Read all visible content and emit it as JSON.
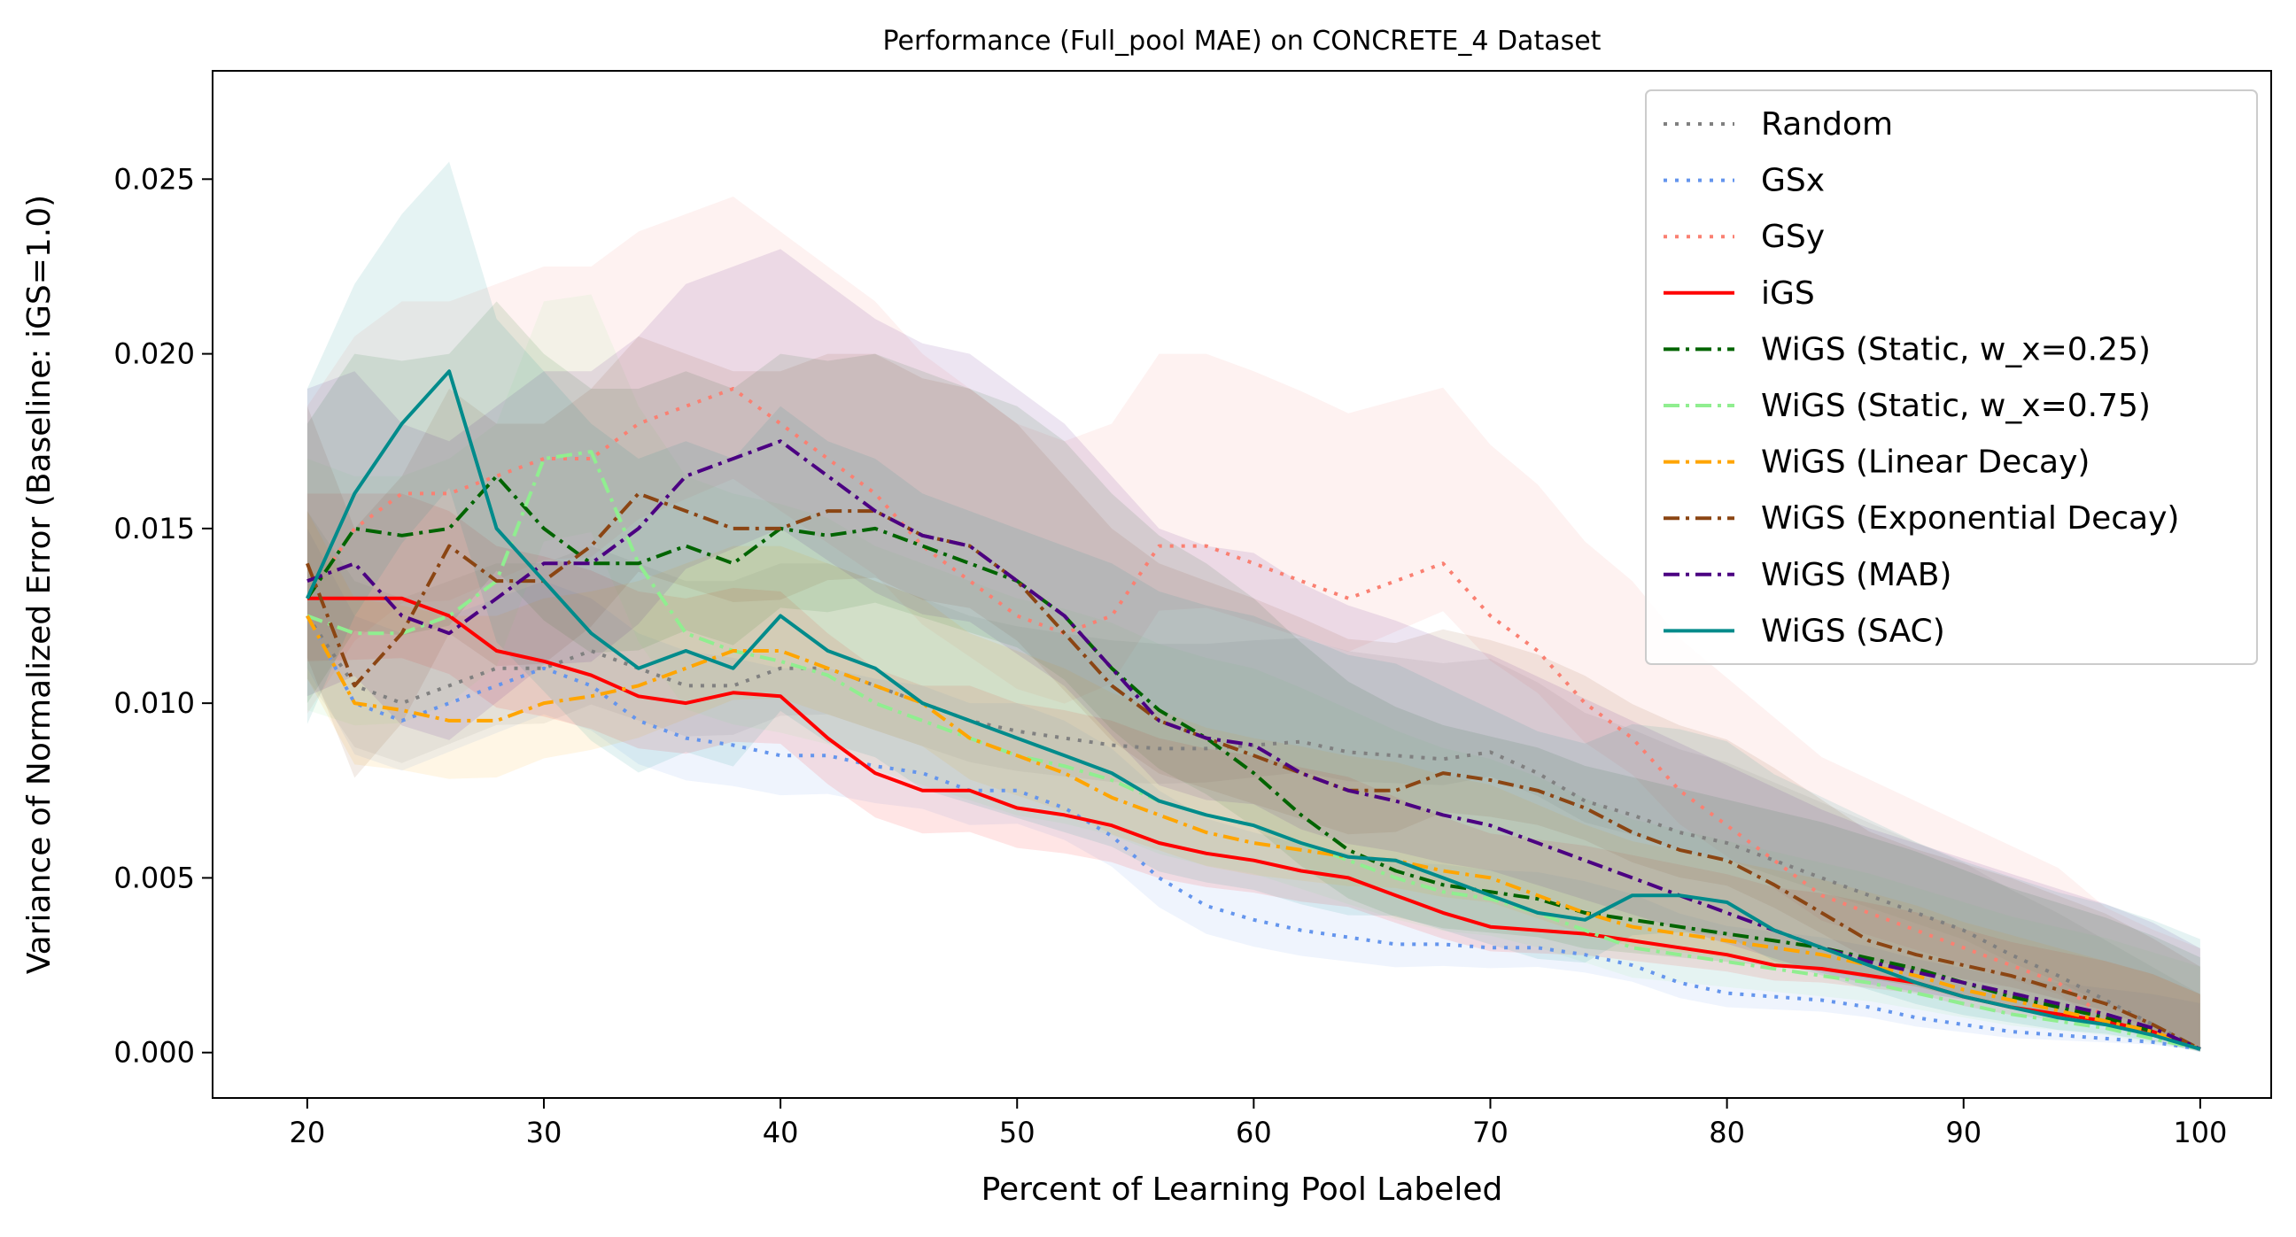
{
  "chart_data": {
    "type": "line",
    "title": "Performance (Full_pool MAE) on CONCRETE_4 Dataset",
    "xlabel": "Percent of Learning Pool Labeled",
    "ylabel": "Variance of Normalized Error (Baseline: iGS=1.0)",
    "xlim": [
      16,
      103
    ],
    "ylim": [
      -0.0013,
      0.0281
    ],
    "xticks": [
      20,
      30,
      40,
      50,
      60,
      70,
      80,
      90,
      100
    ],
    "yticks": [
      0.0,
      0.005,
      0.01,
      0.015,
      0.02,
      0.025
    ],
    "ytick_labels": [
      "0.000",
      "0.005",
      "0.010",
      "0.015",
      "0.020",
      "0.025"
    ],
    "grid": false,
    "legend_position": "top-right",
    "x": [
      20,
      22,
      24,
      26,
      28,
      30,
      32,
      34,
      36,
      38,
      40,
      42,
      44,
      46,
      48,
      50,
      52,
      54,
      56,
      58,
      60,
      62,
      64,
      66,
      68,
      70,
      72,
      74,
      76,
      78,
      80,
      82,
      84,
      86,
      88,
      90,
      92,
      94,
      96,
      98,
      100
    ],
    "series": [
      {
        "name": "Random",
        "color": "#808080",
        "dash": "dot",
        "band": 0.003,
        "values": [
          0.0125,
          0.0105,
          0.01,
          0.0105,
          0.011,
          0.011,
          0.0115,
          0.011,
          0.0105,
          0.0105,
          0.011,
          0.011,
          0.0105,
          0.01,
          0.0095,
          0.0092,
          0.009,
          0.0088,
          0.0087,
          0.0087,
          0.0088,
          0.0089,
          0.0086,
          0.0085,
          0.0084,
          0.0086,
          0.008,
          0.0072,
          0.0068,
          0.0063,
          0.006,
          0.0055,
          0.005,
          0.0045,
          0.004,
          0.0035,
          0.0028,
          0.0022,
          0.0015,
          0.0008,
          0.0001
        ]
      },
      {
        "name": "GSx",
        "color": "#6495ED",
        "dash": "dot",
        "band": 0.0025,
        "values": [
          0.0125,
          0.01,
          0.0095,
          0.01,
          0.0105,
          0.011,
          0.0105,
          0.0095,
          0.009,
          0.0088,
          0.0085,
          0.0085,
          0.0082,
          0.008,
          0.0075,
          0.0075,
          0.007,
          0.0062,
          0.005,
          0.0042,
          0.0038,
          0.0035,
          0.0033,
          0.0031,
          0.0031,
          0.003,
          0.003,
          0.0028,
          0.0025,
          0.002,
          0.0017,
          0.0016,
          0.0015,
          0.0013,
          0.001,
          0.0008,
          0.0006,
          0.0005,
          0.0004,
          0.0003,
          0.0001
        ]
      },
      {
        "name": "GSy",
        "color": "#FA8072",
        "dash": "dot",
        "band": 0.0055,
        "values": [
          0.013,
          0.015,
          0.016,
          0.016,
          0.0165,
          0.017,
          0.017,
          0.018,
          0.0185,
          0.019,
          0.018,
          0.017,
          0.016,
          0.0145,
          0.0135,
          0.0125,
          0.012,
          0.0125,
          0.0145,
          0.0145,
          0.014,
          0.0135,
          0.013,
          0.0135,
          0.014,
          0.0125,
          0.0115,
          0.01,
          0.009,
          0.0075,
          0.0065,
          0.0055,
          0.0045,
          0.004,
          0.0035,
          0.003,
          0.0025,
          0.002,
          0.001,
          0.0005,
          0.0001
        ]
      },
      {
        "name": "iGS",
        "color": "#FF0000",
        "dash": "solid",
        "band": 0.003,
        "values": [
          0.013,
          0.013,
          0.013,
          0.0125,
          0.0115,
          0.0112,
          0.0108,
          0.0102,
          0.01,
          0.0103,
          0.0102,
          0.009,
          0.008,
          0.0075,
          0.0075,
          0.007,
          0.0068,
          0.0065,
          0.006,
          0.0057,
          0.0055,
          0.0052,
          0.005,
          0.0045,
          0.004,
          0.0036,
          0.0035,
          0.0034,
          0.0032,
          0.003,
          0.0028,
          0.0025,
          0.0024,
          0.0022,
          0.002,
          0.0016,
          0.0013,
          0.0011,
          0.0009,
          0.0006,
          0.0001
        ]
      },
      {
        "name": "WiGS (Static, w_x=0.25)",
        "color": "#006400",
        "dash": "dashdot",
        "band": 0.005,
        "values": [
          0.013,
          0.015,
          0.0148,
          0.015,
          0.0165,
          0.015,
          0.014,
          0.014,
          0.0145,
          0.014,
          0.015,
          0.0148,
          0.015,
          0.0145,
          0.014,
          0.0135,
          0.0125,
          0.011,
          0.0098,
          0.009,
          0.008,
          0.0068,
          0.0058,
          0.0052,
          0.0048,
          0.0046,
          0.0044,
          0.004,
          0.0038,
          0.0036,
          0.0034,
          0.0032,
          0.003,
          0.0027,
          0.0024,
          0.002,
          0.0016,
          0.0013,
          0.001,
          0.0006,
          0.0001
        ]
      },
      {
        "name": "WiGS (Static, w_x=0.75)",
        "color": "#90EE90",
        "dash": "dashdot",
        "band": 0.0045,
        "values": [
          0.0125,
          0.012,
          0.012,
          0.0125,
          0.0135,
          0.017,
          0.0172,
          0.014,
          0.012,
          0.0115,
          0.0112,
          0.0108,
          0.01,
          0.0095,
          0.009,
          0.0085,
          0.0082,
          0.0078,
          0.0072,
          0.0068,
          0.0065,
          0.006,
          0.0055,
          0.005,
          0.0046,
          0.0044,
          0.004,
          0.0035,
          0.003,
          0.0028,
          0.0026,
          0.0024,
          0.0022,
          0.002,
          0.0017,
          0.0014,
          0.0011,
          0.0009,
          0.0007,
          0.0004,
          0.0001
        ]
      },
      {
        "name": "WiGS (Linear Decay)",
        "color": "#FFA500",
        "dash": "dashdot",
        "band": 0.003,
        "values": [
          0.0125,
          0.01,
          0.0098,
          0.0095,
          0.0095,
          0.01,
          0.0102,
          0.0105,
          0.011,
          0.0115,
          0.0115,
          0.011,
          0.0105,
          0.01,
          0.009,
          0.0085,
          0.008,
          0.0073,
          0.0068,
          0.0063,
          0.006,
          0.0058,
          0.0056,
          0.0055,
          0.0052,
          0.005,
          0.0045,
          0.004,
          0.0036,
          0.0034,
          0.0032,
          0.003,
          0.0028,
          0.0025,
          0.0022,
          0.0018,
          0.0015,
          0.0012,
          0.0009,
          0.0006,
          0.0001
        ]
      },
      {
        "name": "WiGS (Exponential Decay)",
        "color": "#8B4513",
        "dash": "dashdot",
        "band": 0.0045,
        "values": [
          0.014,
          0.0105,
          0.012,
          0.0145,
          0.0135,
          0.0135,
          0.0145,
          0.016,
          0.0155,
          0.015,
          0.015,
          0.0155,
          0.0155,
          0.0148,
          0.0145,
          0.0135,
          0.012,
          0.0105,
          0.0095,
          0.009,
          0.0085,
          0.008,
          0.0075,
          0.0075,
          0.008,
          0.0078,
          0.0075,
          0.007,
          0.0063,
          0.0058,
          0.0055,
          0.0048,
          0.004,
          0.0032,
          0.0028,
          0.0025,
          0.0022,
          0.0018,
          0.0014,
          0.0008,
          0.0001
        ]
      },
      {
        "name": "WiGS (MAB)",
        "color": "#4B0082",
        "dash": "dashdot",
        "band": 0.0055,
        "values": [
          0.0135,
          0.014,
          0.0125,
          0.012,
          0.013,
          0.014,
          0.014,
          0.015,
          0.0165,
          0.017,
          0.0175,
          0.0165,
          0.0155,
          0.0148,
          0.0145,
          0.0135,
          0.0125,
          0.011,
          0.0095,
          0.009,
          0.0088,
          0.008,
          0.0075,
          0.0072,
          0.0068,
          0.0065,
          0.006,
          0.0055,
          0.005,
          0.0045,
          0.004,
          0.0035,
          0.003,
          0.0026,
          0.0023,
          0.002,
          0.0017,
          0.0014,
          0.0011,
          0.0007,
          0.0001
        ]
      },
      {
        "name": "WiGS (SAC)",
        "color": "#008B8B",
        "dash": "solid",
        "band": 0.006,
        "values": [
          0.013,
          0.016,
          0.018,
          0.0195,
          0.015,
          0.0135,
          0.012,
          0.011,
          0.0115,
          0.011,
          0.0125,
          0.0115,
          0.011,
          0.01,
          0.0095,
          0.009,
          0.0085,
          0.008,
          0.0072,
          0.0068,
          0.0065,
          0.006,
          0.0056,
          0.0055,
          0.005,
          0.0045,
          0.004,
          0.0038,
          0.0045,
          0.0045,
          0.0043,
          0.0035,
          0.003,
          0.0025,
          0.002,
          0.0016,
          0.0013,
          0.001,
          0.0008,
          0.0005,
          0.0001
        ]
      }
    ]
  }
}
